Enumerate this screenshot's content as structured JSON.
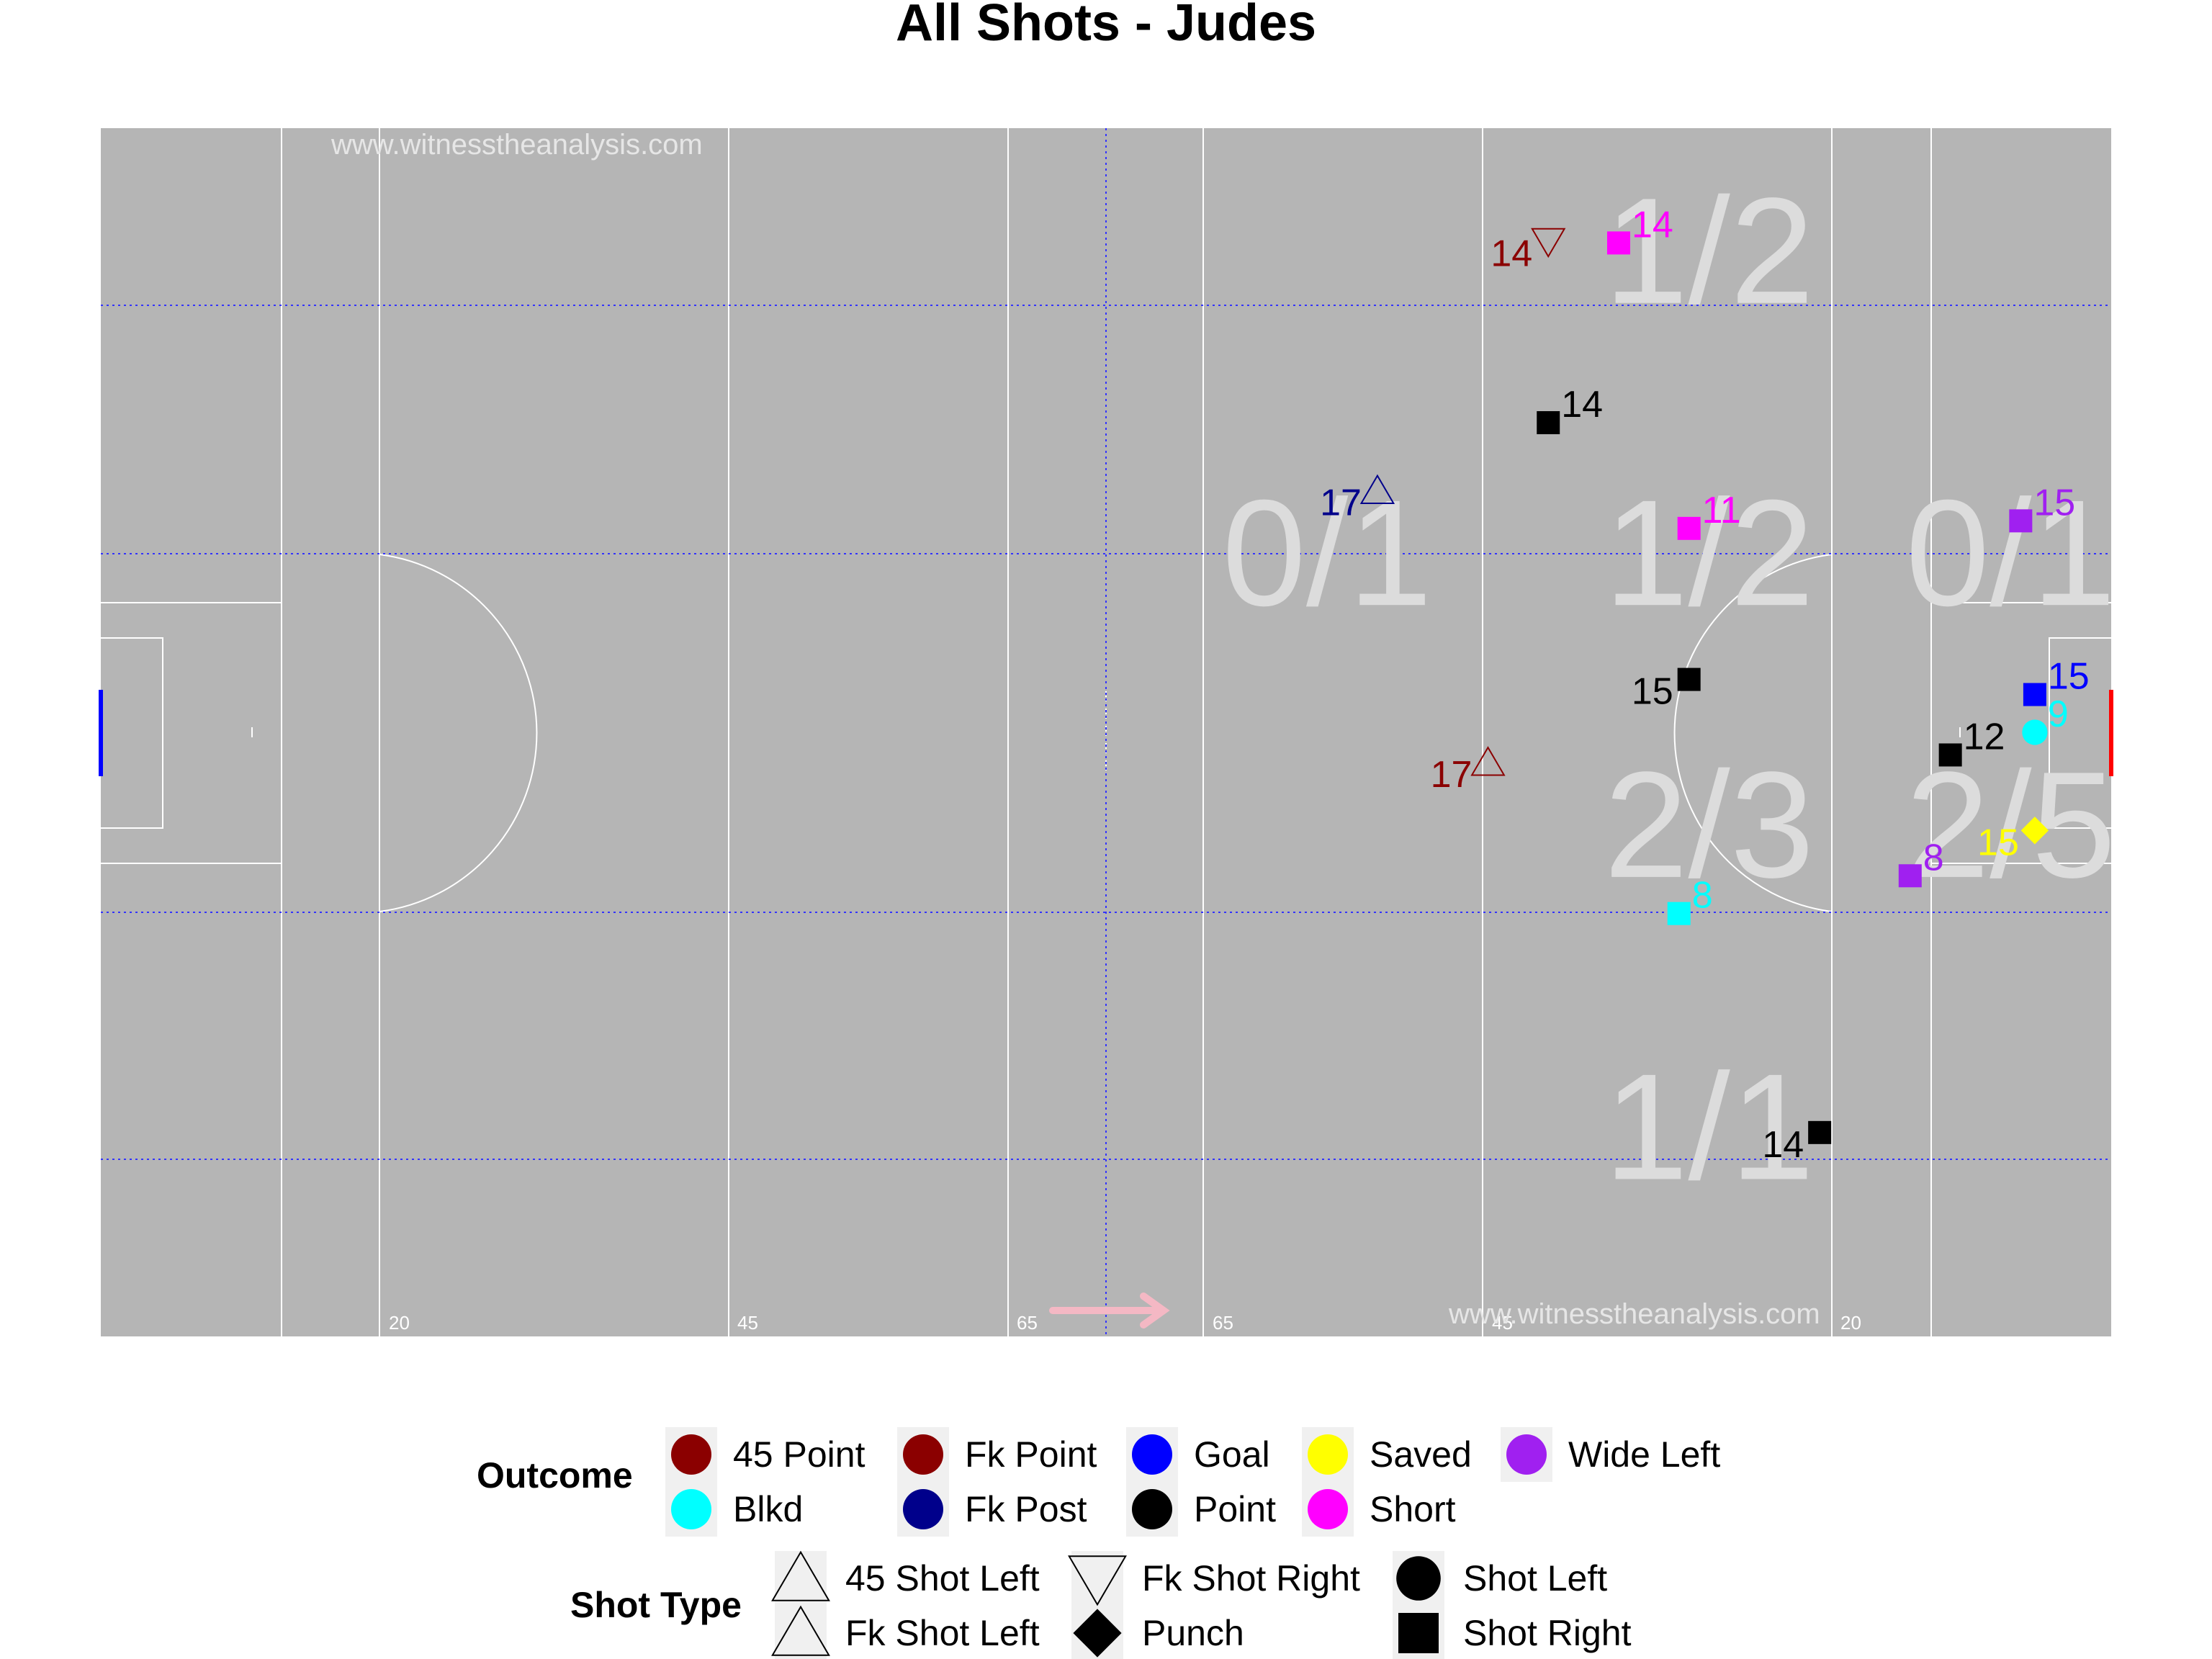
{
  "chart_data": {
    "type": "scatter",
    "title": "All Shots - Judes",
    "watermarks": [
      "www.witnesstheanalysis.com",
      "www.witnesstheanalysis.com"
    ],
    "pitch_distance_labels": [
      "20",
      "45",
      "65",
      "65",
      "45",
      "20"
    ],
    "attack_direction": "right",
    "colors": {
      "pitch": "#b5b5b5",
      "line": "#ffffff",
      "zone_grid": "#3333ff",
      "arrow": "#f4b8c4",
      "goal_left": "#0000ff",
      "goal_right": "#ff0000"
    },
    "zones": [
      {
        "label": "1/2",
        "x": 80,
        "y": 72
      },
      {
        "label": "0/1",
        "x": 61,
        "y": 52
      },
      {
        "label": "1/2",
        "x": 80,
        "y": 52
      },
      {
        "label": "0/1",
        "x": 95,
        "y": 52
      },
      {
        "label": "2/3",
        "x": 80,
        "y": 34
      },
      {
        "label": "2/5",
        "x": 95,
        "y": 34
      },
      {
        "label": "1/1",
        "x": 80,
        "y": 14
      }
    ],
    "outcome_colors": {
      "45 Point": "#8b0000",
      "Fk Point": "#8b0000",
      "Goal": "#0000ff",
      "Saved": "#ffff00",
      "Wide Left": "#a020f0",
      "Blkd": "#00ffff",
      "Fk Post": "#00008b",
      "Point": "#000000",
      "Short": "#ff00ff"
    },
    "shots": [
      {
        "label": "14",
        "outcome": "Fk Point",
        "shot_type": "Fk Shot Right",
        "x": 72,
        "y": 72.5
      },
      {
        "label": "14",
        "outcome": "Short",
        "shot_type": "Shot Right",
        "x": 75.5,
        "y": 72.4
      },
      {
        "label": "14",
        "outcome": "Point",
        "shot_type": "Shot Right",
        "x": 72,
        "y": 60.5
      },
      {
        "label": "17",
        "outcome": "Fk Post",
        "shot_type": "Fk Shot Left",
        "x": 63.5,
        "y": 56
      },
      {
        "label": "11",
        "outcome": "Short",
        "shot_type": "Shot Right",
        "x": 79,
        "y": 53.5
      },
      {
        "label": "15",
        "outcome": "Wide Left",
        "shot_type": "Shot Right",
        "x": 95.5,
        "y": 54
      },
      {
        "label": "15",
        "outcome": "Point",
        "shot_type": "Shot Right",
        "x": 79,
        "y": 43.5
      },
      {
        "label": "15",
        "outcome": "Goal",
        "shot_type": "Shot Right",
        "x": 96.2,
        "y": 42.5
      },
      {
        "label": "12",
        "outcome": "Point",
        "shot_type": "Shot Right",
        "x": 92,
        "y": 38.5
      },
      {
        "label": "9",
        "outcome": "Blkd",
        "shot_type": "Shot Left",
        "x": 96.2,
        "y": 40
      },
      {
        "label": "17",
        "outcome": "45 Point",
        "shot_type": "45 Shot Left",
        "x": 69,
        "y": 38
      },
      {
        "label": "15",
        "outcome": "Saved",
        "shot_type": "Punch",
        "x": 96.2,
        "y": 33.5
      },
      {
        "label": "8",
        "outcome": "Wide Left",
        "shot_type": "Shot Right",
        "x": 90,
        "y": 30.5
      },
      {
        "label": "8",
        "outcome": "Blkd",
        "shot_type": "Shot Right",
        "x": 78.5,
        "y": 28
      },
      {
        "label": "14",
        "outcome": "Point",
        "shot_type": "Shot Right",
        "x": 85.5,
        "y": 13.5
      }
    ],
    "legend": {
      "outcome_title": "Outcome",
      "outcome_items": [
        "45 Point",
        "Fk Point",
        "Goal",
        "Saved",
        "Wide Left",
        "Blkd",
        "Fk Post",
        "Point",
        "Short"
      ],
      "shot_type_title": "Shot Type",
      "shot_type_items": [
        "45 Shot Left",
        "Fk Shot Right",
        "Shot Left",
        "Fk Shot Left",
        "Punch",
        "Shot Right"
      ]
    },
    "xlim": [
      0,
      100
    ],
    "ylim": [
      0,
      80
    ],
    "grid": false,
    "legend_position": "bottom"
  }
}
